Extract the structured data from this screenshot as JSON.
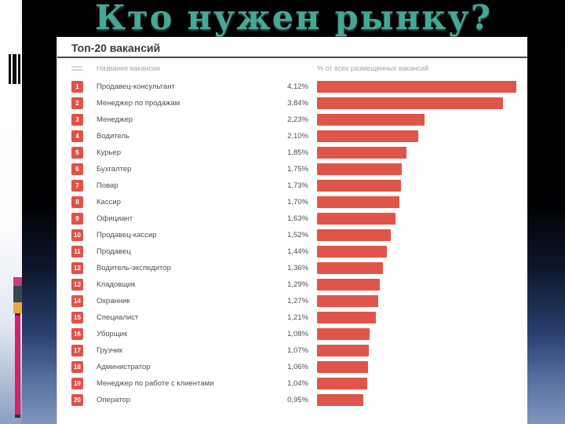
{
  "slide": {
    "title": "Кто нужен рынку?"
  },
  "panel": {
    "heading": "Топ-20 вакансий",
    "columns": {
      "name": "Название вакансии",
      "percent": "% от всех размещенных вакансий"
    }
  },
  "icons": {
    "barcode": "barcode-icon",
    "row_handle": "list-lines-icon"
  },
  "colors": {
    "bar": "#e0554a",
    "badge": "#df5349",
    "title_teal": "#45a897",
    "deco_pink": "#c2417f",
    "deco_dark": "#37474f",
    "deco_yellow": "#e9a93c",
    "deco_magenta": "#d1226b"
  },
  "chart_data": {
    "type": "bar",
    "orientation": "horizontal",
    "title": "Топ-20 вакансий",
    "xlabel": "% от всех размещенных вакансий",
    "ylabel": "Название вакансии",
    "xlim": [
      0,
      4.3
    ],
    "grid": false,
    "legend": "none",
    "bar_color": "#e0554a",
    "ranks": [
      1,
      2,
      3,
      4,
      5,
      6,
      7,
      8,
      9,
      10,
      11,
      12,
      13,
      14,
      15,
      16,
      17,
      18,
      19,
      20
    ],
    "categories": [
      "Продавец-консультант",
      "Менеджер по продажам",
      "Менеджер",
      "Водитель",
      "Курьер",
      "Бухгалтер",
      "Повар",
      "Кассир",
      "Официант",
      "Продавец-кассир",
      "Продавец",
      "Водитель-экспедитор",
      "Кладовщик",
      "Охранник",
      "Специалист",
      "Уборщик",
      "Грузчик",
      "Администратор",
      "Менеджер по работе с клиентами",
      "Оператор"
    ],
    "values": [
      4.12,
      3.84,
      2.23,
      2.1,
      1.85,
      1.75,
      1.73,
      1.7,
      1.63,
      1.52,
      1.44,
      1.36,
      1.29,
      1.27,
      1.21,
      1.08,
      1.07,
      1.06,
      1.04,
      0.95
    ],
    "labels": [
      "4,12%",
      "3,84%",
      "2,23%",
      "2,10%",
      "1,85%",
      "1,75%",
      "1,73%",
      "1,70%",
      "1,63%",
      "1,52%",
      "1,44%",
      "1,36%",
      "1,29%",
      "1,27%",
      "1,21%",
      "1,08%",
      "1,07%",
      "1,06%",
      "1,04%",
      "0,95%"
    ]
  }
}
